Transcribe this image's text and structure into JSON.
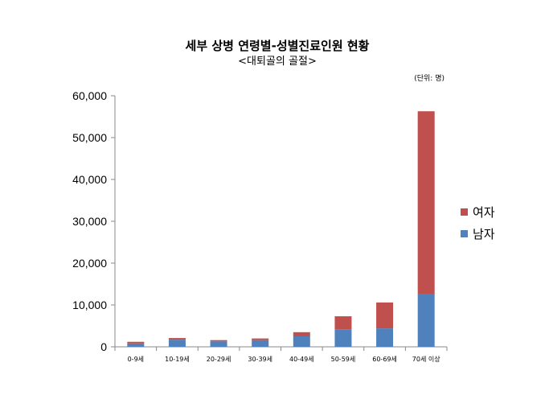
{
  "chart_data": {
    "type": "bar",
    "stacked": true,
    "title": "세부 상병 연령별-성별진료인원 현황",
    "subtitle": "<대퇴골의 골절>",
    "unit_note": "(단위: 명)",
    "categories": [
      "0-9세",
      "10-19세",
      "20-29세",
      "30-39세",
      "40-49세",
      "50-59세",
      "60-69세",
      "70세 이상"
    ],
    "series": [
      {
        "name": "남자",
        "color": "#4F81BD",
        "values": [
          800,
          1700,
          1300,
          1600,
          2500,
          4200,
          4400,
          12600
        ]
      },
      {
        "name": "여자",
        "color": "#C0504D",
        "values": [
          400,
          400,
          300,
          400,
          1000,
          3100,
          6200,
          43700
        ]
      }
    ],
    "ylim": [
      0,
      60000
    ],
    "yticks": [
      0,
      10000,
      20000,
      30000,
      40000,
      50000,
      60000
    ],
    "ytick_labels": [
      "0",
      "10,000",
      "20,000",
      "30,000",
      "40,000",
      "50,000",
      "60,000"
    ],
    "grid": false,
    "legend_position": "right",
    "legend_order": [
      "여자",
      "남자"
    ]
  }
}
